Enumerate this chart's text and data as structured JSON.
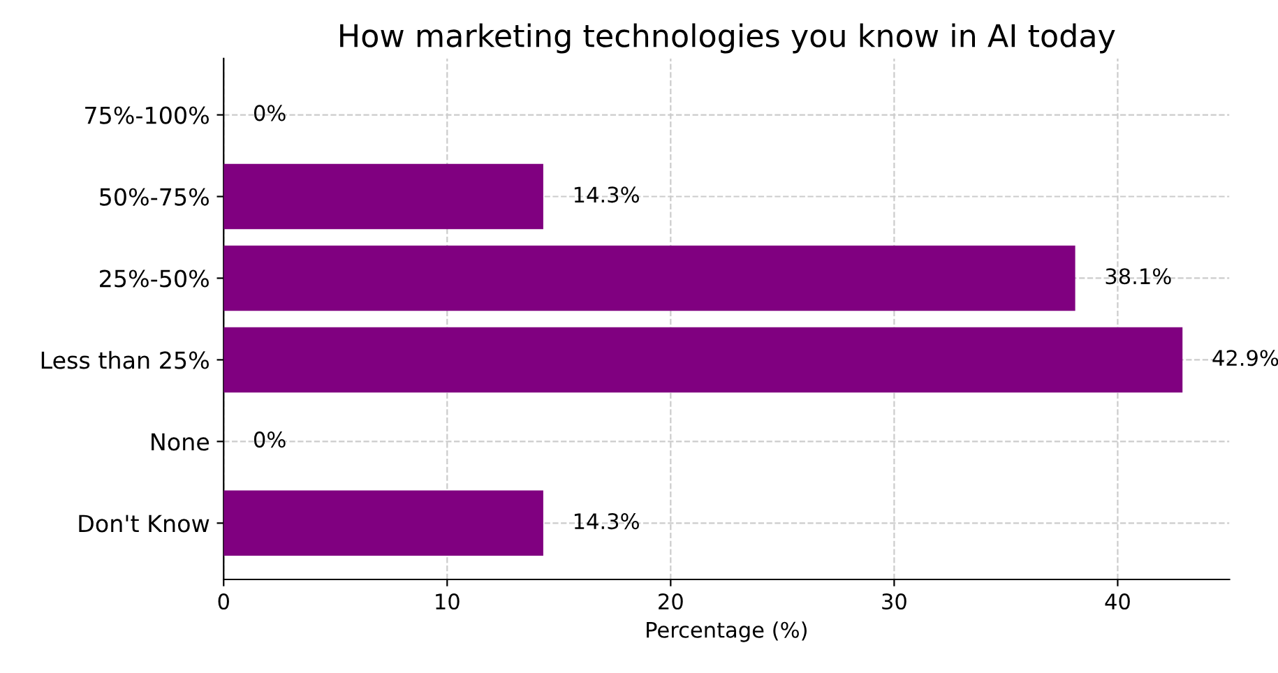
{
  "chart_data": {
    "type": "bar",
    "orientation": "horizontal",
    "title": "How marketing technologies you know in AI today",
    "xlabel": "Percentage (%)",
    "categories": [
      "75%-100%",
      "50%-75%",
      "25%-50%",
      "Less than 25%",
      "None",
      "Don't Know"
    ],
    "values": [
      0,
      14.3,
      38.1,
      42.9,
      0,
      14.3
    ],
    "value_labels": [
      "0%",
      "14.3%",
      "38.1%",
      "42.9%",
      "0%",
      "14.3%"
    ],
    "color": "#800080",
    "xlim": [
      0,
      45
    ],
    "xticks": [
      0,
      10,
      20,
      30,
      40
    ],
    "grid": true,
    "legend": false
  }
}
